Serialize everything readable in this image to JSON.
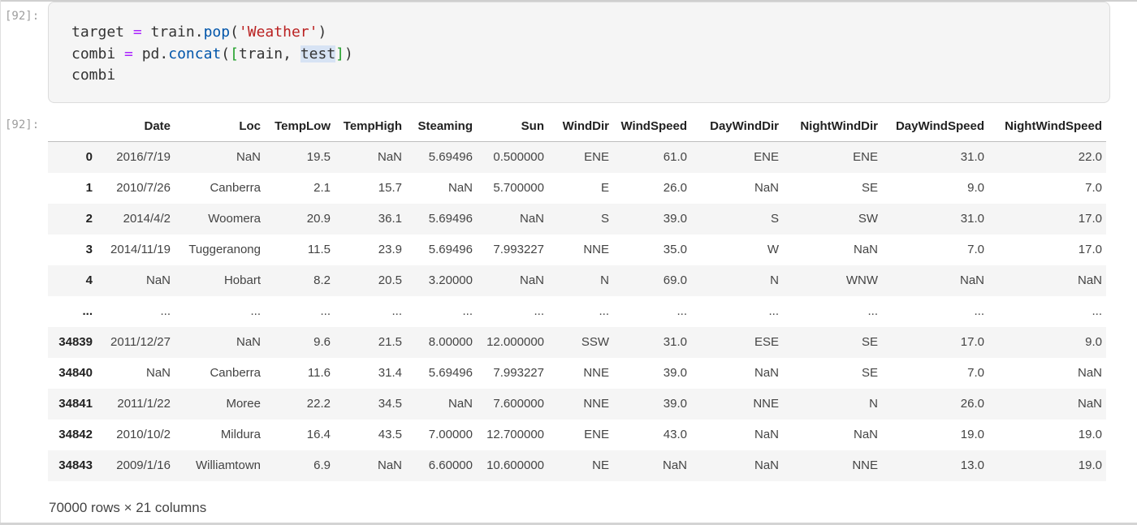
{
  "cell": {
    "input_prompt": "[92]:",
    "output_prompt": "[92]:"
  },
  "code": {
    "l1_a": "target ",
    "l1_op": "=",
    "l1_b": " train.",
    "l1_fn": "pop",
    "l1_c": "(",
    "l1_str": "'Weather'",
    "l1_d": ")",
    "l2_a": "combi ",
    "l2_op": "=",
    "l2_b": " pd.",
    "l2_fn": "concat",
    "l2_c": "(",
    "l2_br1": "[",
    "l2_d": "train, ",
    "l2_sel": "test",
    "l2_br2": "]",
    "l2_e": ")",
    "l3": "combi"
  },
  "table": {
    "columns": [
      "",
      "Date",
      "Loc",
      "TempLow",
      "TempHigh",
      "Steaming",
      "Sun",
      "WindDir",
      "WindSpeed",
      "DayWindDir",
      "NightWindDir",
      "DayWindSpeed",
      "NightWindSpeed"
    ],
    "rows": [
      [
        "0",
        "2016/7/19",
        "NaN",
        "19.5",
        "NaN",
        "5.69496",
        "0.500000",
        "ENE",
        "61.0",
        "ENE",
        "ENE",
        "31.0",
        "22.0"
      ],
      [
        "1",
        "2010/7/26",
        "Canberra",
        "2.1",
        "15.7",
        "NaN",
        "5.700000",
        "E",
        "26.0",
        "NaN",
        "SE",
        "9.0",
        "7.0"
      ],
      [
        "2",
        "2014/4/2",
        "Woomera",
        "20.9",
        "36.1",
        "5.69496",
        "NaN",
        "S",
        "39.0",
        "S",
        "SW",
        "31.0",
        "17.0"
      ],
      [
        "3",
        "2014/11/19",
        "Tuggeranong",
        "11.5",
        "23.9",
        "5.69496",
        "7.993227",
        "NNE",
        "35.0",
        "W",
        "NaN",
        "7.0",
        "17.0"
      ],
      [
        "4",
        "NaN",
        "Hobart",
        "8.2",
        "20.5",
        "3.20000",
        "NaN",
        "N",
        "69.0",
        "N",
        "WNW",
        "NaN",
        "NaN"
      ],
      [
        "...",
        "...",
        "...",
        "...",
        "...",
        "...",
        "...",
        "...",
        "...",
        "...",
        "...",
        "...",
        "..."
      ],
      [
        "34839",
        "2011/12/27",
        "NaN",
        "9.6",
        "21.5",
        "8.00000",
        "12.000000",
        "SSW",
        "31.0",
        "ESE",
        "SE",
        "17.0",
        "9.0"
      ],
      [
        "34840",
        "NaN",
        "Canberra",
        "11.6",
        "31.4",
        "5.69496",
        "7.993227",
        "NNE",
        "39.0",
        "NaN",
        "SE",
        "7.0",
        "NaN"
      ],
      [
        "34841",
        "2011/1/22",
        "Moree",
        "22.2",
        "34.5",
        "NaN",
        "7.600000",
        "NNE",
        "39.0",
        "NNE",
        "N",
        "26.0",
        "NaN"
      ],
      [
        "34842",
        "2010/10/2",
        "Mildura",
        "16.4",
        "43.5",
        "7.00000",
        "12.700000",
        "ENE",
        "43.0",
        "NaN",
        "NaN",
        "19.0",
        "19.0"
      ],
      [
        "34843",
        "2009/1/16",
        "Williamtown",
        "6.9",
        "NaN",
        "6.60000",
        "10.600000",
        "NE",
        "NaN",
        "NaN",
        "NNE",
        "13.0",
        "19.0"
      ]
    ],
    "shape_note": "70000 rows × 21 columns"
  }
}
